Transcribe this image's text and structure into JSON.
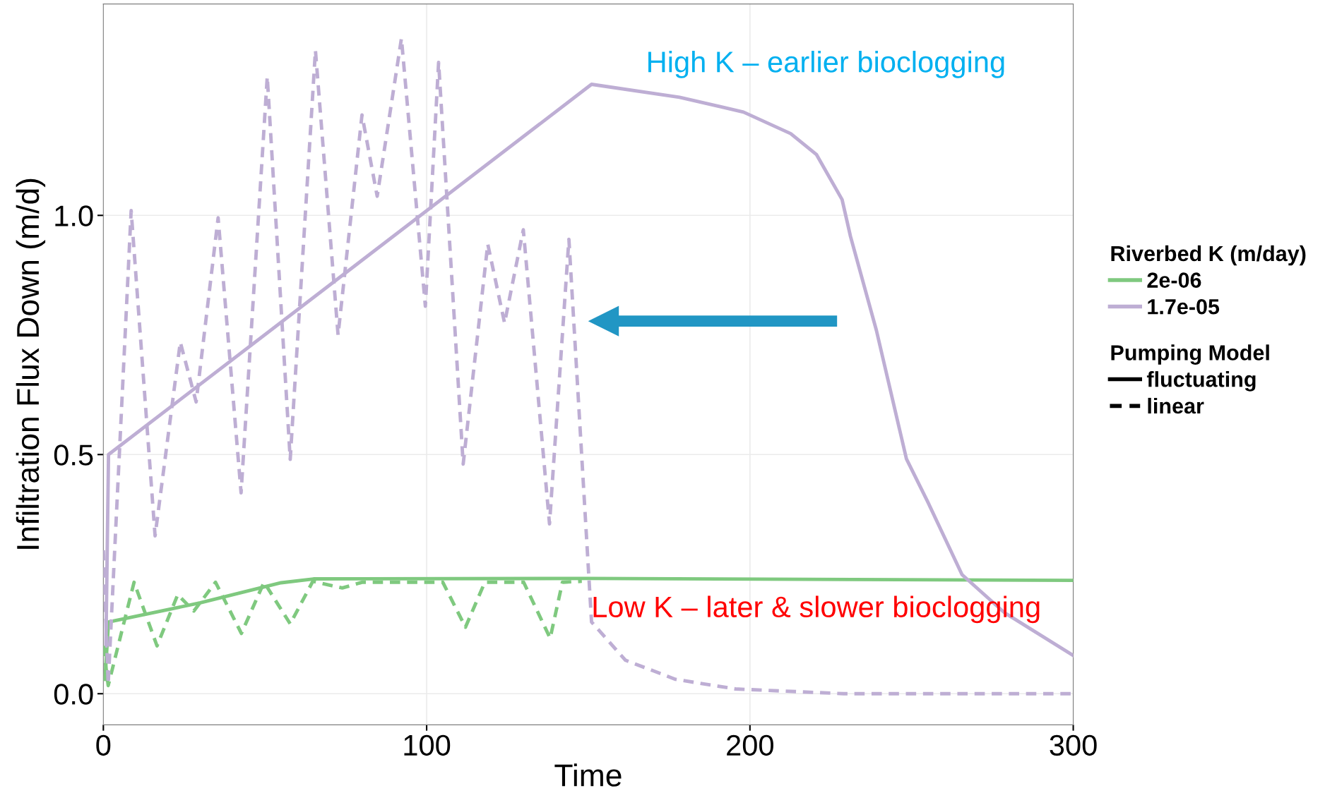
{
  "chart_data": {
    "type": "line",
    "xlabel": "Time",
    "ylabel": "Infiltration Flux Down (m/d)",
    "xlim": [
      0,
      300
    ],
    "xticks": [
      0,
      100,
      200,
      300
    ],
    "ylim": [
      -0.065,
      1.442
    ],
    "yticks": [
      {
        "value": 0,
        "label": "0.0"
      },
      {
        "value": 0.5,
        "label": "0.5"
      },
      {
        "value": 1,
        "label": "1.0"
      }
    ],
    "grid": true,
    "legend": "right",
    "legend_title": [
      "Riverbed K (m/day)",
      "Pumping Model"
    ],
    "series": [
      {
        "name": "2e-06",
        "color": "#7fc97f",
        "line_style": "solid",
        "x": [
          0.5,
          1.6,
          30,
          55,
          65,
          150,
          300
        ],
        "values": [
          0.03,
          0.15,
          0.19,
          0.232,
          0.24,
          0.241,
          0.237
        ]
      },
      {
        "name": "1.7e-05",
        "color": "#beaed4",
        "line_style": "solid",
        "x": [
          0.8,
          1.6,
          151,
          178.2,
          198,
          212.6,
          220.6,
          228.5,
          231.1,
          239.1,
          248.4,
          255,
          265.6,
          278.8,
          300
        ],
        "values": [
          0.1,
          0.5,
          1.274,
          1.247,
          1.216,
          1.171,
          1.127,
          1.033,
          0.956,
          0.76,
          0.491,
          0.401,
          0.249,
          0.169,
          0.08
        ]
      },
      {
        "color": "#7fc97f",
        "line_style": "dashed",
        "x": [
          0,
          1.5,
          9.5,
          16.6,
          23,
          28,
          34.7,
          42.7,
          49.7,
          57.8,
          64.8,
          73.9,
          80,
          105,
          112,
          118,
          130,
          138.2,
          142,
          148
        ],
        "values": [
          0.1,
          0.017,
          0.233,
          0.1,
          0.207,
          0.173,
          0.233,
          0.126,
          0.233,
          0.146,
          0.235,
          0.221,
          0.233,
          0.233,
          0.139,
          0.233,
          0.233,
          0.116,
          0.233,
          0.235
        ]
      },
      {
        "color": "#beaed4",
        "line_style": "dashed",
        "x": [
          0,
          1.5,
          8.6,
          16,
          23.8,
          28.7,
          35.5,
          42.6,
          50.7,
          57.8,
          65.6,
          72.6,
          80,
          84.7,
          92.2,
          99.6,
          103.7,
          111.3,
          118.9,
          124.1,
          129.9,
          138,
          144,
          151,
          161.5,
          177,
          195.5,
          229,
          300
        ],
        "values": [
          0.3,
          0.02,
          1.01,
          0.33,
          0.735,
          0.61,
          0.995,
          0.42,
          1.29,
          0.49,
          1.345,
          0.75,
          1.21,
          1.04,
          1.37,
          0.81,
          1.32,
          0.48,
          0.94,
          0.775,
          0.97,
          0.355,
          0.95,
          0.15,
          0.07,
          0.03,
          0.01,
          0.0,
          0.0
        ]
      },
      {
        "name": "fluctuating",
        "color": "#000000",
        "line_style": "solid"
      },
      {
        "name": "linear",
        "color": "#000000",
        "line_style": "dashed"
      }
    ],
    "annotations": [
      "High K – earlier bioclogging",
      "Low K – later & slower bioclogging"
    ]
  }
}
